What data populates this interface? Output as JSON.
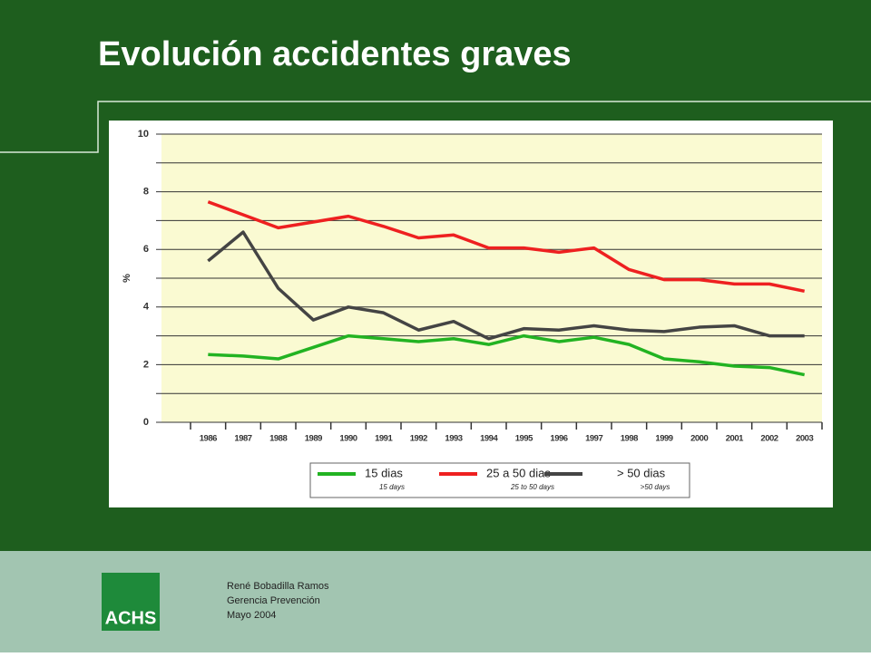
{
  "slide_title": "Evolución accidentes graves",
  "footer": {
    "lines": [
      "René Bobadilla Ramos",
      "Gerencia Prevención",
      "Mayo 2004"
    ],
    "logo": "ACHS"
  },
  "chart_data": {
    "type": "line",
    "y_label": "%",
    "categories": [
      "1986",
      "1987",
      "1988",
      "1989",
      "1990",
      "1991",
      "1992",
      "1993",
      "1994",
      "1995",
      "1996",
      "1997",
      "1998",
      "1999",
      "2000",
      "2001",
      "2002",
      "2003"
    ],
    "series": [
      {
        "name": "15 dias",
        "subname": "15 days",
        "color": "#22b322",
        "values": [
          2.35,
          2.3,
          2.2,
          2.6,
          3.0,
          2.9,
          2.8,
          2.9,
          2.7,
          3.0,
          2.8,
          2.95,
          2.7,
          2.2,
          2.1,
          1.95,
          1.9,
          1.65
        ]
      },
      {
        "name": "25 a 50 dias",
        "subname": "25 to 50 days",
        "color": "#ee2020",
        "values": [
          7.65,
          7.2,
          6.75,
          6.95,
          7.15,
          6.8,
          6.4,
          6.5,
          6.05,
          6.05,
          5.9,
          6.05,
          5.3,
          4.95,
          4.95,
          4.8,
          4.8,
          4.55
        ]
      },
      {
        "name": "> 50 dias",
        "subname": ">50 days",
        "color": "#444444",
        "values": [
          5.6,
          6.6,
          4.65,
          3.55,
          4.0,
          3.8,
          3.2,
          3.5,
          2.9,
          3.25,
          3.2,
          3.35,
          3.2,
          3.15,
          3.3,
          3.35,
          3.0,
          3.0
        ]
      }
    ],
    "ylim": [
      0,
      10
    ],
    "yticks": [
      0,
      2,
      4,
      6,
      8,
      10
    ],
    "minor_grid": [
      1,
      3,
      5,
      7,
      9
    ],
    "grid": true
  }
}
